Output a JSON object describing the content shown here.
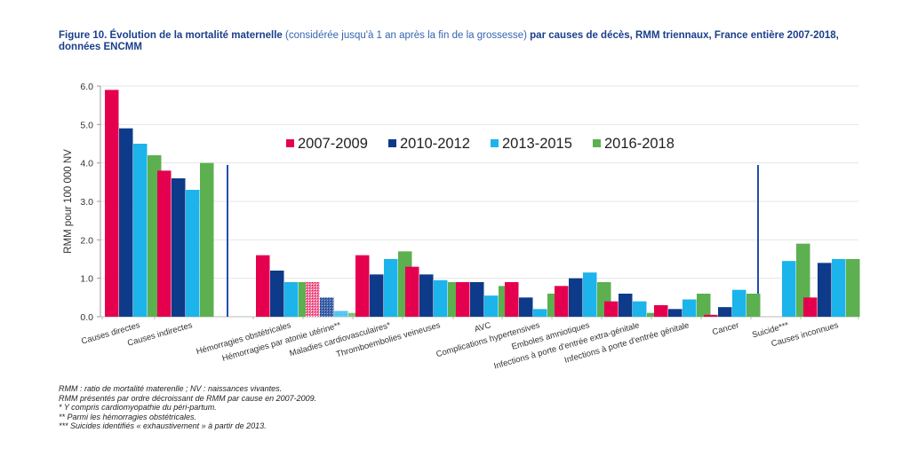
{
  "title": {
    "bold1": "Figure 10. Évolution de la mortalité maternelle",
    "normal": " (considérée jusqu'à 1 an après la fin de la grossesse) ",
    "bold2": "par causes de décès, RMM triennaux, France entière 2007-2018, données ENCMM"
  },
  "chart_data": {
    "type": "bar",
    "title": "Évolution de la mortalité maternelle par causes de décès, RMM triennaux, France entière 2007-2018",
    "xlabel": "",
    "ylabel": "RMM pour 100 000 NV",
    "ylim": [
      0,
      6
    ],
    "yticks": [
      "0.0",
      "1.0",
      "2.0",
      "3.0",
      "4.0",
      "5.0",
      "6.0"
    ],
    "grid": true,
    "legend_position": "top-center",
    "categories": [
      "Causes directes",
      "Causes indirectes",
      "Hémorragies obstétricales",
      "Hémorragies par atonie utérine**",
      "Maladies cardiovasculaires*",
      "Thromboembolies veineuses",
      "AVC",
      "Complications hypertensives",
      "Emboles amniotiques",
      "Infections à porte d'entrée extra-génitale",
      "Infections à porte d'entrée génitale",
      "Cancer",
      "Suicide***",
      "Causes inconnues"
    ],
    "series": [
      {
        "name": "2007-2009",
        "color": "#e5004f",
        "values": [
          5.9,
          3.8,
          1.6,
          0.9,
          1.6,
          1.3,
          0.9,
          0.9,
          0.8,
          0.4,
          0.3,
          0.05,
          null,
          0.5
        ]
      },
      {
        "name": "2010-2012",
        "color": "#0e3a8a",
        "values": [
          4.9,
          3.6,
          1.2,
          0.5,
          1.1,
          1.1,
          0.9,
          0.5,
          1.0,
          0.6,
          0.2,
          0.25,
          null,
          1.4
        ]
      },
      {
        "name": "2013-2015",
        "color": "#1cb4ea",
        "values": [
          4.5,
          3.3,
          0.9,
          0.15,
          1.5,
          0.95,
          0.55,
          0.2,
          1.15,
          0.4,
          0.45,
          0.7,
          1.45,
          1.5
        ]
      },
      {
        "name": "2016-2018",
        "color": "#5cb04f",
        "values": [
          4.2,
          4.0,
          0.9,
          0.1,
          1.7,
          0.9,
          0.8,
          0.6,
          0.9,
          0.1,
          0.6,
          0.6,
          1.9,
          1.5
        ]
      }
    ],
    "hatched_category": "Hémorragies par atonie utérine**",
    "separators_after": [
      "Causes indirectes",
      "Cancer"
    ]
  },
  "notes": [
    "RMM : ratio de mortalité materenlle ; NV : naissances vivantes.",
    "RMM présentés par ordre décroissant de RMM par cause en 2007-2009.",
    "* Y compris cardiomyopathie du péri-partum.",
    "** Parmi les hémorragies obstétricales.",
    "*** Suicides identifiés « exhaustivement » à partir de 2013."
  ]
}
